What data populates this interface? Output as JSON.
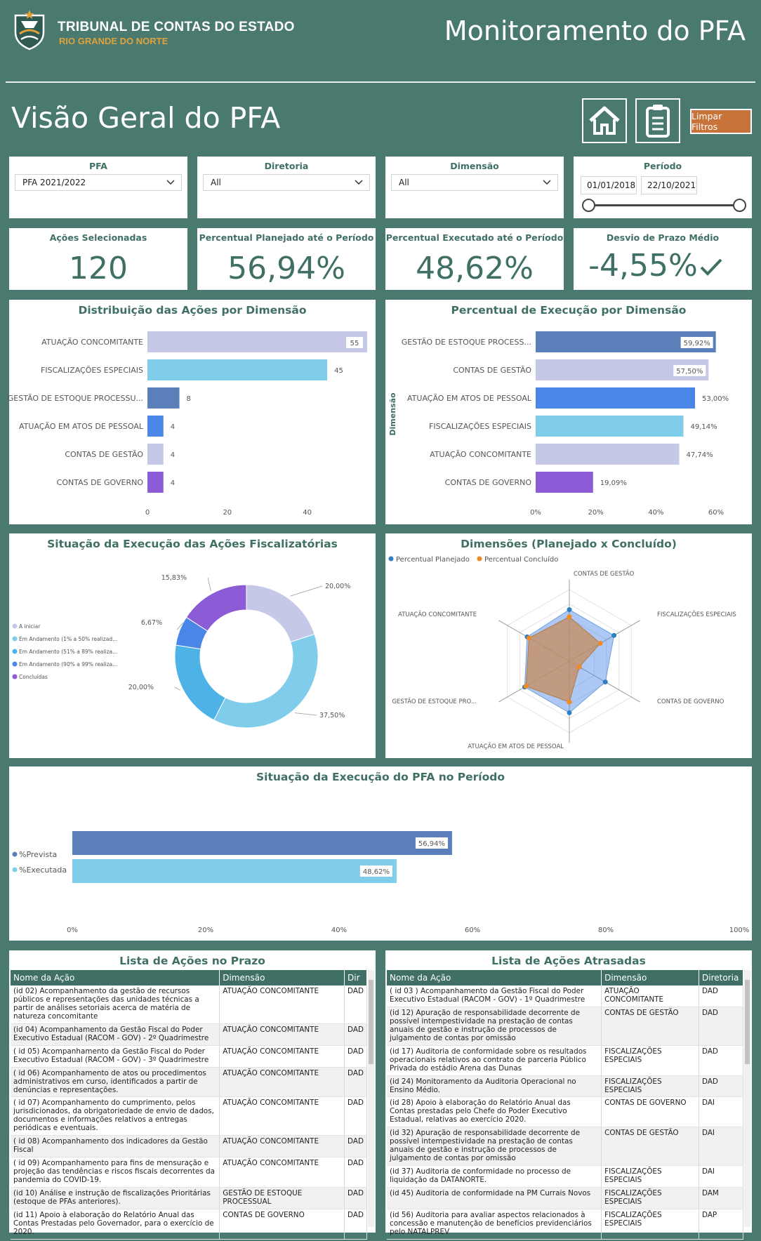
{
  "header": {
    "org_name": "TRIBUNAL DE CONTAS DO ESTADO",
    "org_region": "RIO GRANDE DO NORTE",
    "title": "Monitoramento do PFA",
    "page_title": "Visão Geral do PFA",
    "clear_filters": "Limpar Filtros"
  },
  "slicers": {
    "pfa": {
      "label": "PFA",
      "value": "PFA 2021/2022"
    },
    "diretoria": {
      "label": "Diretoria",
      "value": "All"
    },
    "dimensao": {
      "label": "Dimensão",
      "value": "All"
    },
    "periodo": {
      "label": "Período",
      "start": "01/01/2018",
      "end": "22/10/2021"
    }
  },
  "kpis": [
    {
      "label": "Ações Selecionadas",
      "value": "120"
    },
    {
      "label": "Percentual Planejado até o Período",
      "value": "56,94%"
    },
    {
      "label": "Percentual Executado até o Período",
      "value": "48,62%"
    },
    {
      "label": "Desvio de Prazo Médio",
      "value": "-4,55%",
      "icon": "check-icon"
    }
  ],
  "chart_data": [
    {
      "type": "bar",
      "title": "Distribuição das Ações por Dimensão",
      "orientation": "horizontal",
      "categories": [
        "ATUAÇÃO CONCOMITANTE",
        "FISCALIZAÇÕES ESPECIAIS",
        "GESTÃO DE ESTOQUE PROCESSU...",
        "ATUAÇÃO EM ATOS DE PESSOAL",
        "CONTAS DE GESTÃO",
        "CONTAS DE GOVERNO"
      ],
      "values": [
        55,
        45,
        8,
        4,
        4,
        4
      ],
      "data_labels": [
        "55",
        "45",
        "8",
        "4",
        "4",
        "4"
      ],
      "colors": [
        "#c5c8e6",
        "#7fcdea",
        "#5b7fb8",
        "#4a86e8",
        "#c5c8e6",
        "#8b5cd6"
      ],
      "x_ticks": [
        "0",
        "20",
        "40"
      ],
      "xlim": [
        0,
        55
      ]
    },
    {
      "type": "bar",
      "title": "Percentual de Execução por Dimensão",
      "orientation": "horizontal",
      "ylabel": "Dimensão",
      "categories": [
        "GESTÃO DE ESTOQUE PROCESS...",
        "CONTAS DE GESTÃO",
        "ATUAÇÃO EM ATOS DE PESSOAL",
        "FISCALIZAÇÕES ESPECIAIS",
        "ATUAÇÃO CONCOMITANTE",
        "CONTAS DE GOVERNO"
      ],
      "values": [
        59.92,
        57.5,
        53.0,
        49.14,
        47.74,
        19.09
      ],
      "data_labels": [
        "59,92%",
        "57,50%",
        "53,00%",
        "49,14%",
        "47,74%",
        "19,09%"
      ],
      "colors": [
        "#5b7fb8",
        "#c5c8e6",
        "#4a86e8",
        "#7fcdea",
        "#c5c8e6",
        "#8b5cd6"
      ],
      "x_ticks": [
        "0%",
        "20%",
        "40%",
        "60%"
      ],
      "xlim": [
        0,
        60
      ]
    },
    {
      "type": "pie",
      "title": "Situação da Execução das Ações Fiscalizatórias",
      "donut": true,
      "legend": [
        "A iniciar",
        "Em Andamento (1% a 50% realizad...",
        "Em Andamento (51% a 89% realiza...",
        "Em Andamento (90% a 99% realiza...",
        "Concluídas"
      ],
      "legend_colors": [
        "#c5c8e6",
        "#7fcdea",
        "#4db3e6",
        "#4a86e8",
        "#8b5cd6"
      ],
      "legend_placement": "left",
      "slices": [
        {
          "label": "20,00%",
          "value": 20.0,
          "color": "#c5c8e6"
        },
        {
          "label": "37,50%",
          "value": 37.5,
          "color": "#7fcdea"
        },
        {
          "label": "20,00%",
          "value": 20.0,
          "color": "#4db3e6"
        },
        {
          "label": "6,67%",
          "value": 6.67,
          "color": "#4a86e8"
        },
        {
          "label": "15,83%",
          "value": 15.83,
          "color": "#8b5cd6"
        }
      ]
    },
    {
      "type": "radar",
      "title": "Dimensões (Planejado x Concluído)",
      "legend_placement": "top-left",
      "axes": [
        "CONTAS DE GESTÃO",
        "FISCALIZAÇÕES ESPECIAIS",
        "CONTAS DE GOVERNO",
        "ATUAÇÃO EM ATOS DE PESSOAL",
        "GESTÃO DE ESTOQUE PRO...",
        "ATUAÇÃO CONCOMITANTE"
      ],
      "series": [
        {
          "name": "Percentual Planejado",
          "color": "#2f7fc1",
          "values": [
            0.72,
            0.72,
            0.58,
            0.72,
            0.72,
            0.68
          ]
        },
        {
          "name": "Percentual Concluído",
          "color": "#f08a24",
          "values": [
            0.62,
            0.5,
            0.16,
            0.57,
            0.7,
            0.65
          ]
        }
      ]
    },
    {
      "type": "bar",
      "title": "Situação da Execução do PFA no Período",
      "orientation": "horizontal",
      "categories": [
        "%Prevista",
        "%Executada"
      ],
      "values": [
        56.94,
        48.62
      ],
      "data_labels": [
        "56,94%",
        "48,62%"
      ],
      "colors": [
        "#5b7fb8",
        "#7fcdea"
      ],
      "x_ticks": [
        "0%",
        "20%",
        "40%",
        "60%",
        "80%",
        "100%"
      ],
      "xlim": [
        0,
        100
      ],
      "legend_placement": "left"
    }
  ],
  "table_prazo": {
    "title": "Lista de Ações no Prazo",
    "columns": [
      "Nome da Ação",
      "Dimensão",
      "Dir"
    ],
    "rows": [
      [
        "(id 02) Acompanhamento da gestão de recursos públicos e representações das unidades técnicas a partir de análises setoriais acerca de matéria de natureza concomitante",
        "ATUAÇÃO CONCOMITANTE",
        "DAD"
      ],
      [
        "(id 04) Acompanhamento da Gestão Fiscal do Poder Executivo Estadual (RACOM - GOV) - 2º Quadrimestre",
        "ATUAÇÃO CONCOMITANTE",
        "DAD"
      ],
      [
        "( id 05) Acompanhamento da Gestão Fiscal do Poder Executivo Estadual (RACOM - GOV) - 3º Quadrimestre",
        "ATUAÇÃO CONCOMITANTE",
        "DAD"
      ],
      [
        "( id 06) Acompanhamento de atos ou procedimentos administrativos em curso, identificados a partir de denúncias e representações.",
        "ATUAÇÃO CONCOMITANTE",
        "DAD"
      ],
      [
        "( id 07) Acompanhamento do cumprimento, pelos jurisdicionados, da obrigatoriedade de envio de dados, documentos e informações relativos a entregas periódicas e eventuais.",
        "ATUAÇÃO CONCOMITANTE",
        "DAD"
      ],
      [
        "( id 08) Acompanhamento dos indicadores da Gestão Fiscal",
        "ATUAÇÃO CONCOMITANTE",
        "DAD"
      ],
      [
        "( id 09) Acompanhamento para fins de mensuração e projeção das tendências e riscos fiscais decorrentes da pandemia do COVID-19.",
        "ATUAÇÃO CONCOMITANTE",
        "DAD"
      ],
      [
        "(id 10) Análise e instrução de fiscalizações Prioritárias (estoque de PFAs anteriores).",
        "GESTÃO DE ESTOQUE PROCESSUAL",
        "DAD"
      ],
      [
        "(id 11) Apoio à elaboração do Relatório Anual das Contas Prestadas pelo Governador, para o exercício de 2020.",
        "CONTAS DE GOVERNO",
        "DAD"
      ]
    ]
  },
  "table_atrasadas": {
    "title": "Lista de Ações Atrasadas",
    "columns": [
      "Nome da Ação",
      "Dimensão",
      "Diretoria"
    ],
    "rows": [
      [
        "( id 03 ) Acompanhamento da Gestão Fiscal do Poder Executivo Estadual (RACOM - GOV) - 1º Quadrimestre",
        "ATUAÇÃO CONCOMITANTE",
        "DAD"
      ],
      [
        "(id 12) Apuração de responsabilidade decorrente de possível intempestividade na prestação de contas anuais de gestão e instrução de processos de julgamento de contas por omissão",
        "CONTAS DE GESTÃO",
        "DAD"
      ],
      [
        "(id 17) Auditoria de conformidade sobre os resultados operacionais relativos ao contrato de parceria Público Privada do estádio Arena das Dunas",
        "FISCALIZAÇÕES ESPECIAIS",
        "DAD"
      ],
      [
        "(id 24) Monitoramento da Auditoria Operacional no Ensino Médio.",
        "FISCALIZAÇÕES ESPECIAIS",
        "DAD"
      ],
      [
        "(id 28) Apoio à elaboração do Relatório Anual das Contas prestadas pelo Chefe do Poder Executivo Estadual, relativas ao exercício 2020.",
        "CONTAS DE GOVERNO",
        "DAI"
      ],
      [
        "(id 32) Apuração de responsabilidade decorrente de possível intempestividade na prestação de contas anuais de gestão e instrução de processos de julgamento de contas por omissão",
        "CONTAS DE GESTÃO",
        "DAI"
      ],
      [
        "(id 37) Auditoria de conformidade no processo de liquidação da DATANORTE.",
        "FISCALIZAÇÕES ESPECIAIS",
        "DAI"
      ],
      [
        "(id 45) Auditoria de conformidade na PM Currais Novos",
        "FISCALIZAÇÕES ESPECIAIS",
        "DAM"
      ],
      [
        "(id 56) Auditoria para avaliar aspectos relacionados à concessão e manutenção de benefícios previdenciários pelo NATALPREV",
        "FISCALIZAÇÕES ESPECIAIS",
        "DAP"
      ]
    ]
  },
  "icons": {
    "home": "home-icon",
    "report": "clipboard-icon",
    "dropdown": "chevron-down-icon"
  },
  "colors": {
    "background": "#4a7a6f",
    "accent": "#3f6f65",
    "button": "#c8733a"
  }
}
